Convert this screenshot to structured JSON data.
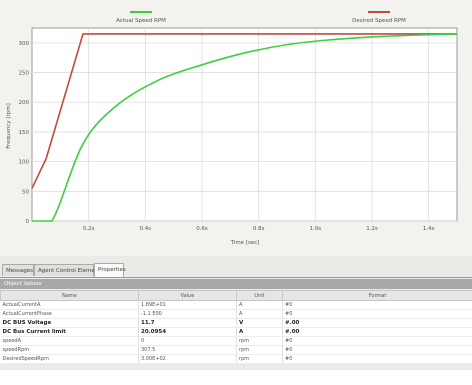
{
  "chart": {
    "legend": {
      "actual": "Actual Speed RPM",
      "desired": "Desired Speed RPM"
    },
    "y_axis_label": "Frequency [rpm]",
    "x_axis_label": "Time [sec]",
    "y_ticks": [
      "300",
      "250",
      "200",
      "150",
      "100",
      "50",
      "0"
    ],
    "x_ticks": [
      "0.2s",
      "0.4s",
      "0.6s",
      "0.8s",
      "1.0s",
      "1.2s",
      "1.4s"
    ],
    "colors": {
      "actual": "#3ecf3e",
      "desired": "#c24a3a",
      "grid": "#dcdcdc"
    }
  },
  "chart_data": {
    "type": "line",
    "x_unit": "s",
    "ylim": [
      0,
      325
    ],
    "xlim": [
      0.0,
      1.5
    ],
    "grid": true,
    "legend_position": "top",
    "series": [
      {
        "name": "Desired Speed RPM",
        "color": "#c24a3a",
        "x": [
          0.0,
          0.05,
          0.18,
          0.6,
          1.0,
          1.5
        ],
        "y": [
          55,
          105,
          315,
          315,
          315,
          315
        ]
      },
      {
        "name": "Actual Speed RPM",
        "color": "#3ecf3e",
        "x": [
          0.0,
          0.07,
          0.18,
          0.3,
          0.45,
          0.6,
          0.75,
          0.9,
          1.05,
          1.2,
          1.35,
          1.5
        ],
        "y": [
          0,
          0,
          130,
          195,
          238,
          263,
          283,
          297,
          305,
          310,
          313,
          315
        ]
      }
    ]
  },
  "tabs": [
    {
      "label": "Messages"
    },
    {
      "label": "Agent Control Elements"
    },
    {
      "label": "Properties"
    }
  ],
  "panel_title": "Object Values",
  "table": {
    "columns": [
      "Name",
      "Value",
      "Unit",
      "Format"
    ],
    "rows": [
      {
        "name": "ActualCurrentA",
        "value": "1.89E+01",
        "unit": "A",
        "format": "#0",
        "bold": false
      },
      {
        "name": "ActualCurrentPhase",
        "value": "-1.1 E00",
        "unit": "A",
        "format": "#0",
        "bold": false
      },
      {
        "name": "DC BUS Voltage",
        "value": "11.7",
        "unit": "V",
        "format": "#.00",
        "bold": true
      },
      {
        "name": "DC Bus Current limit",
        "value": "20.0954",
        "unit": "A",
        "format": "#.00",
        "bold": true
      },
      {
        "name": "speedA",
        "value": "0",
        "unit": "rpm",
        "format": "#0",
        "bold": false
      },
      {
        "name": "speedRpm",
        "value": "307.5",
        "unit": "rpm",
        "format": "#0",
        "bold": false
      },
      {
        "name": "DesiredSpeedRpm",
        "value": "3.00E+02",
        "unit": "rpm",
        "format": "#0",
        "bold": false
      }
    ]
  }
}
